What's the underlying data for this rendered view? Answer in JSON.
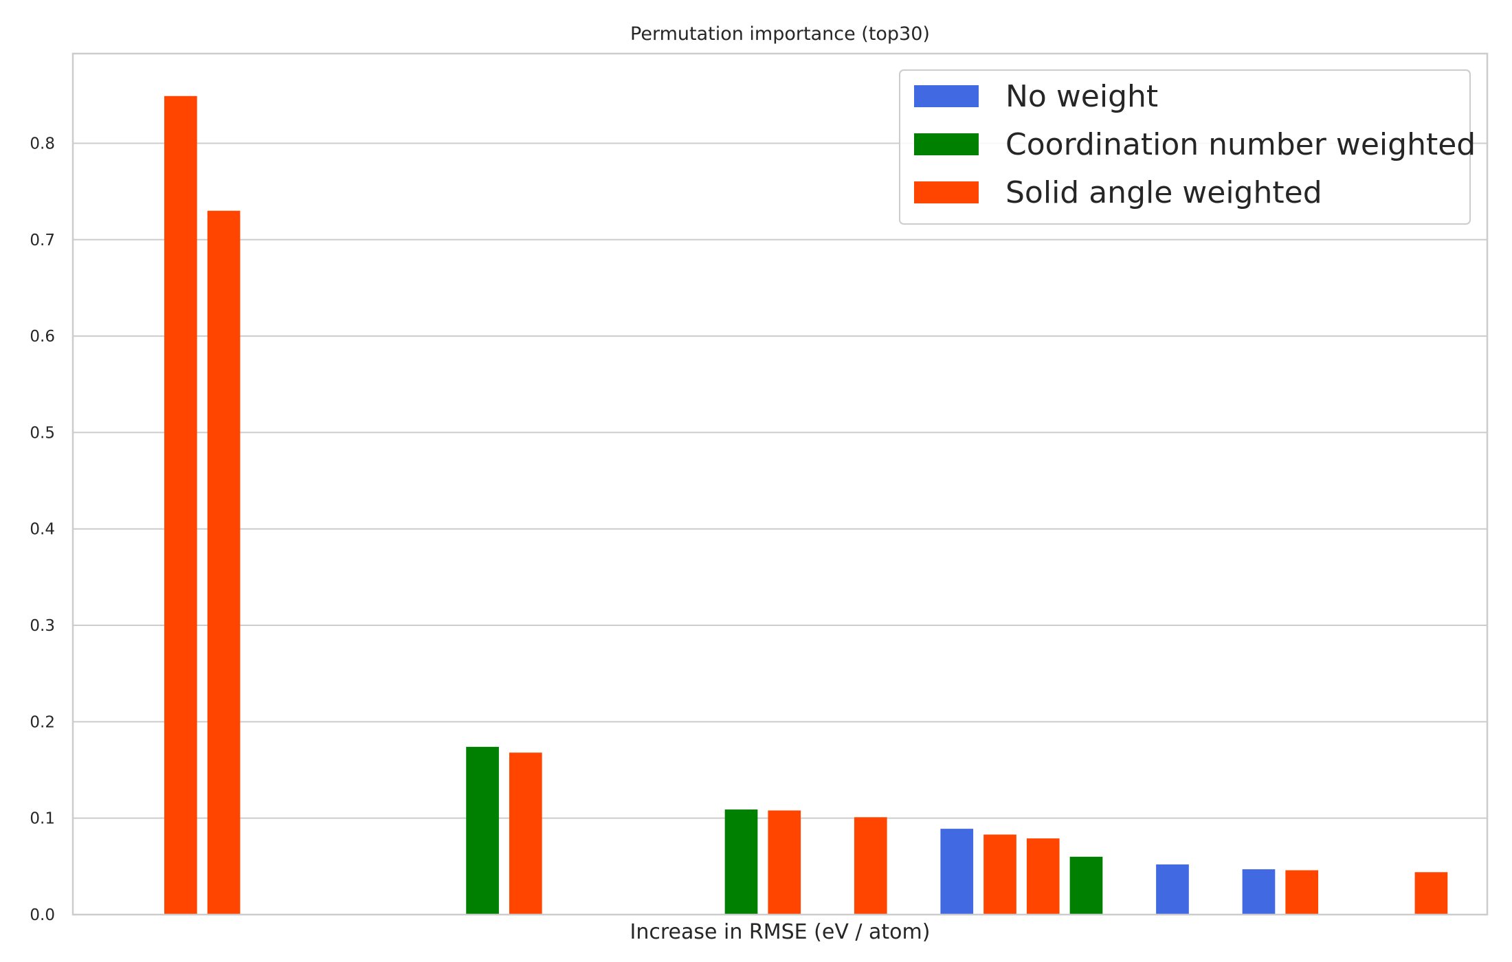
{
  "chart_data": {
    "type": "bar",
    "title": "Permutation importance (top30)",
    "xlabel": "Increase in RMSE (eV / atom)",
    "ylabel": "",
    "ylim": [
      0,
      0.893
    ],
    "yticks": [
      0.0,
      0.1,
      0.2,
      0.3,
      0.4,
      0.5,
      0.6,
      0.7,
      0.8
    ],
    "ytick_labels": [
      "0.0",
      "0.1",
      "0.2",
      "0.3",
      "0.4",
      "0.5",
      "0.6",
      "0.7",
      "0.8"
    ],
    "x_range": [
      -1.5,
      31.3
    ],
    "grid": "horizontal",
    "legend_position": "top-right",
    "series": [
      {
        "name": "No weight",
        "color": "#4169E1",
        "points": [
          {
            "x": 19,
            "y": 0.089
          },
          {
            "x": 24,
            "y": 0.052
          },
          {
            "x": 26,
            "y": 0.047
          }
        ]
      },
      {
        "name": "Coordination number weighted",
        "color": "#008000",
        "points": [
          {
            "x": 8,
            "y": 0.174
          },
          {
            "x": 14,
            "y": 0.109
          },
          {
            "x": 22,
            "y": 0.06
          }
        ]
      },
      {
        "name": "Solid angle weighted",
        "color": "#FF4500",
        "points": [
          {
            "x": 1,
            "y": 0.849
          },
          {
            "x": 2,
            "y": 0.73
          },
          {
            "x": 9,
            "y": 0.168
          },
          {
            "x": 15,
            "y": 0.108
          },
          {
            "x": 17,
            "y": 0.101
          },
          {
            "x": 20,
            "y": 0.083
          },
          {
            "x": 21,
            "y": 0.079
          },
          {
            "x": 27,
            "y": 0.046
          },
          {
            "x": 30,
            "y": 0.044
          }
        ]
      }
    ]
  }
}
